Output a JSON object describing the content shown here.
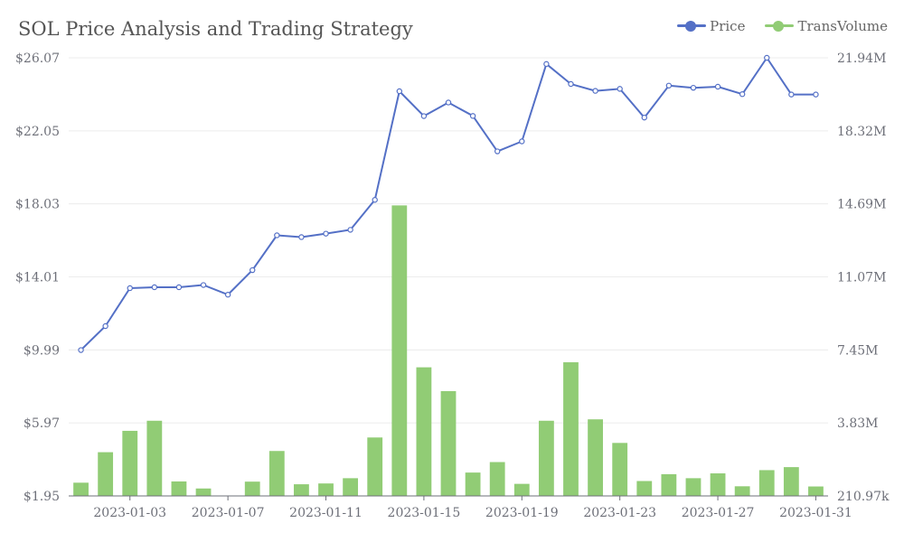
{
  "chart_data": {
    "type": "bar+line",
    "title": "SOL Price Analysis and Trading Strategy",
    "legend_position": "top-right",
    "grid": true,
    "x": [
      "2023-01-01",
      "2023-01-02",
      "2023-01-03",
      "2023-01-04",
      "2023-01-05",
      "2023-01-06",
      "2023-01-07",
      "2023-01-08",
      "2023-01-09",
      "2023-01-10",
      "2023-01-11",
      "2023-01-12",
      "2023-01-13",
      "2023-01-14",
      "2023-01-15",
      "2023-01-16",
      "2023-01-17",
      "2023-01-18",
      "2023-01-19",
      "2023-01-20",
      "2023-01-21",
      "2023-01-22",
      "2023-01-23",
      "2023-01-24",
      "2023-01-25",
      "2023-01-26",
      "2023-01-27",
      "2023-01-28",
      "2023-01-29",
      "2023-01-30",
      "2023-01-31"
    ],
    "x_tick_labels": [
      "2023-01-03",
      "2023-01-07",
      "2023-01-11",
      "2023-01-15",
      "2023-01-19",
      "2023-01-23",
      "2023-01-27",
      "2023-01-31"
    ],
    "series": [
      {
        "name": "Price",
        "type": "line",
        "axis": "left",
        "color": "#5470c6",
        "values": [
          9.98,
          11.3,
          13.39,
          13.44,
          13.44,
          13.56,
          13.03,
          14.38,
          16.3,
          16.2,
          16.39,
          16.6,
          18.25,
          24.23,
          22.86,
          23.61,
          22.87,
          20.92,
          21.47,
          25.73,
          24.63,
          24.25,
          24.36,
          22.78,
          24.54,
          24.42,
          24.48,
          24.07,
          26.07,
          24.05,
          24.05
        ]
      },
      {
        "name": "TransVolume",
        "type": "bar",
        "axis": "right",
        "color": "#91cc75",
        "values": [
          868000,
          2380000,
          3440000,
          3940000,
          930000,
          580000,
          0,
          920000,
          2440000,
          790000,
          830000,
          1090000,
          3110000,
          14620000,
          6590000,
          5410000,
          1370000,
          1890000,
          810000,
          3940000,
          6840000,
          4010000,
          2840000,
          950000,
          1290000,
          1090000,
          1330000,
          690000,
          1490000,
          1640000,
          680000
        ]
      }
    ],
    "y_left": {
      "min": 1.95,
      "max": 26.07,
      "tick_labels": [
        "$1.95",
        "$5.97",
        "$9.99",
        "$14.01",
        "$18.03",
        "$22.05",
        "$26.07"
      ]
    },
    "y_right": {
      "min": 210970,
      "max": 21940000,
      "tick_labels": [
        "210.97k",
        "3.83M",
        "7.45M",
        "11.07M",
        "14.69M",
        "18.32M",
        "21.94M"
      ]
    }
  }
}
